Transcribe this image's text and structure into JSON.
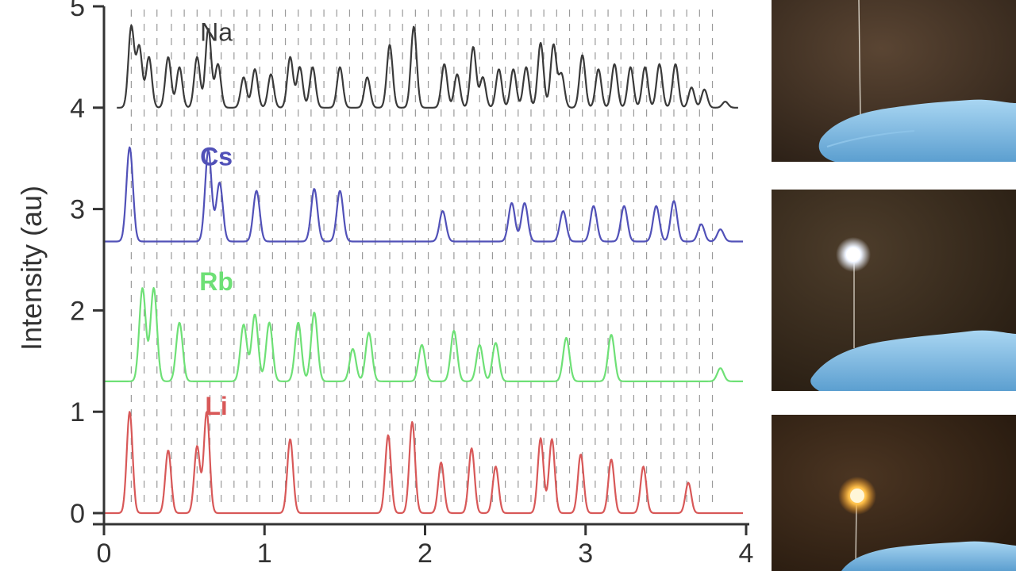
{
  "chart_data": {
    "type": "line",
    "title": "",
    "xlabel": "",
    "ylabel": "Intensity (au)",
    "xlim": [
      0,
      4
    ],
    "ylim": [
      0,
      5
    ],
    "x_ticks": [
      "0",
      "1",
      "2",
      "3",
      "4"
    ],
    "y_ticks": [
      "0",
      "1",
      "2",
      "3",
      "4",
      "5"
    ],
    "reference_lines_x": [
      0.17,
      0.25,
      0.33,
      0.42,
      0.5,
      0.58,
      0.66,
      0.73,
      0.81,
      0.89,
      0.97,
      1.05,
      1.13,
      1.21,
      1.29,
      1.37,
      1.45,
      1.53,
      1.61,
      1.69,
      1.78,
      1.86,
      1.94,
      2.02,
      2.1,
      2.18,
      2.26,
      2.34,
      2.42,
      2.5,
      2.58,
      2.66,
      2.74,
      2.82,
      2.9,
      2.98,
      3.06,
      3.14,
      3.22,
      3.3,
      3.38,
      3.47,
      3.55,
      3.63,
      3.71,
      3.79
    ],
    "series": [
      {
        "name": "Na",
        "color": "#3a3a3a",
        "baseline": 4.0,
        "start": 0.08,
        "end": 3.95,
        "peaks": [
          [
            0.17,
            0.8
          ],
          [
            0.22,
            0.6
          ],
          [
            0.28,
            0.5
          ],
          [
            0.4,
            0.5
          ],
          [
            0.47,
            0.4
          ],
          [
            0.58,
            0.5
          ],
          [
            0.65,
            0.78
          ],
          [
            0.71,
            0.43
          ],
          [
            0.87,
            0.3
          ],
          [
            0.94,
            0.38
          ],
          [
            1.04,
            0.33
          ],
          [
            1.16,
            0.5
          ],
          [
            1.22,
            0.4
          ],
          [
            1.3,
            0.4
          ],
          [
            1.47,
            0.4
          ],
          [
            1.64,
            0.3
          ],
          [
            1.78,
            0.62
          ],
          [
            1.93,
            0.8
          ],
          [
            2.12,
            0.43
          ],
          [
            2.2,
            0.33
          ],
          [
            2.3,
            0.6
          ],
          [
            2.36,
            0.3
          ],
          [
            2.46,
            0.38
          ],
          [
            2.55,
            0.38
          ],
          [
            2.63,
            0.4
          ],
          [
            2.72,
            0.64
          ],
          [
            2.8,
            0.62
          ],
          [
            2.85,
            0.33
          ],
          [
            2.98,
            0.52
          ],
          [
            3.08,
            0.38
          ],
          [
            3.18,
            0.43
          ],
          [
            3.28,
            0.4
          ],
          [
            3.37,
            0.4
          ],
          [
            3.46,
            0.43
          ],
          [
            3.56,
            0.43
          ],
          [
            3.66,
            0.2
          ],
          [
            3.74,
            0.18
          ],
          [
            3.87,
            0.06
          ]
        ],
        "width": 0.018
      },
      {
        "name": "Cs",
        "color": "#5151b8",
        "baseline": 2.68,
        "start": 0.0,
        "end": 3.98,
        "peaks": [
          [
            0.16,
            0.93
          ],
          [
            0.65,
            0.9
          ],
          [
            0.72,
            0.58
          ],
          [
            0.95,
            0.5
          ],
          [
            1.31,
            0.52
          ],
          [
            1.47,
            0.5
          ],
          [
            2.11,
            0.3
          ],
          [
            2.54,
            0.38
          ],
          [
            2.62,
            0.38
          ],
          [
            2.86,
            0.3
          ],
          [
            3.05,
            0.35
          ],
          [
            3.24,
            0.35
          ],
          [
            3.44,
            0.35
          ],
          [
            3.55,
            0.4
          ],
          [
            3.72,
            0.17
          ],
          [
            3.84,
            0.12
          ]
        ],
        "width": 0.02
      },
      {
        "name": "Rb",
        "color": "#6ee076",
        "baseline": 1.3,
        "start": 0.0,
        "end": 3.98,
        "peaks": [
          [
            0.24,
            0.92
          ],
          [
            0.31,
            0.92
          ],
          [
            0.47,
            0.58
          ],
          [
            0.87,
            0.56
          ],
          [
            0.94,
            0.66
          ],
          [
            1.03,
            0.58
          ],
          [
            1.21,
            0.58
          ],
          [
            1.31,
            0.68
          ],
          [
            1.55,
            0.32
          ],
          [
            1.65,
            0.48
          ],
          [
            1.98,
            0.36
          ],
          [
            2.18,
            0.5
          ],
          [
            2.34,
            0.36
          ],
          [
            2.44,
            0.38
          ],
          [
            2.88,
            0.43
          ],
          [
            3.16,
            0.46
          ],
          [
            3.84,
            0.13
          ]
        ],
        "width": 0.02
      },
      {
        "name": "Li",
        "color": "#d85858",
        "baseline": 0.0,
        "start": 0.0,
        "end": 3.98,
        "peaks": [
          [
            0.16,
            1.0
          ],
          [
            0.4,
            0.62
          ],
          [
            0.58,
            0.66
          ],
          [
            0.64,
            1.0
          ],
          [
            1.16,
            0.73
          ],
          [
            1.77,
            0.77
          ],
          [
            1.92,
            0.9
          ],
          [
            2.1,
            0.5
          ],
          [
            2.29,
            0.64
          ],
          [
            2.44,
            0.46
          ],
          [
            2.72,
            0.74
          ],
          [
            2.79,
            0.73
          ],
          [
            2.97,
            0.58
          ],
          [
            3.16,
            0.53
          ],
          [
            3.36,
            0.46
          ],
          [
            3.64,
            0.3
          ]
        ],
        "width": 0.018
      }
    ],
    "grid": false
  },
  "photos": [
    {
      "state": "unlit filament held by blue-gloved hand",
      "color": "#4a3828"
    },
    {
      "state": "filament glowing white-blue",
      "color": "#3d3020"
    },
    {
      "state": "filament glowing yellow-orange",
      "color": "#3a2c1c"
    }
  ]
}
